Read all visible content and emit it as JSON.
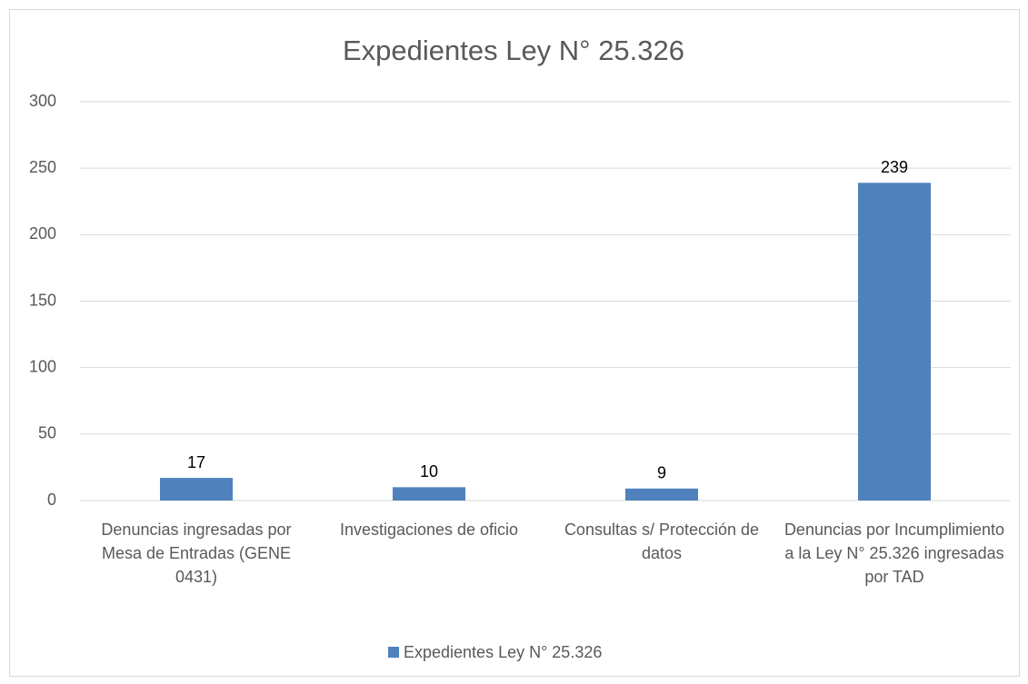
{
  "chart_data": {
    "type": "bar",
    "title": "Expedientes Ley N° 25.326",
    "categories": [
      "Denuncias ingresadas por Mesa de Entradas (GENE 0431)",
      "Investigaciones de oficio",
      "Consultas s/ Protección de datos",
      "Denuncias por Incumplimiento a la Ley N° 25.326 ingresadas por TAD"
    ],
    "series": [
      {
        "name": "Expedientes Ley N° 25.326",
        "color": "#4f81bd",
        "values": [
          17,
          10,
          9,
          239
        ]
      }
    ],
    "ylim": [
      0,
      300
    ],
    "yticks": [
      0,
      50,
      100,
      150,
      200,
      250,
      300
    ],
    "grid": true,
    "legend": "bottom"
  }
}
